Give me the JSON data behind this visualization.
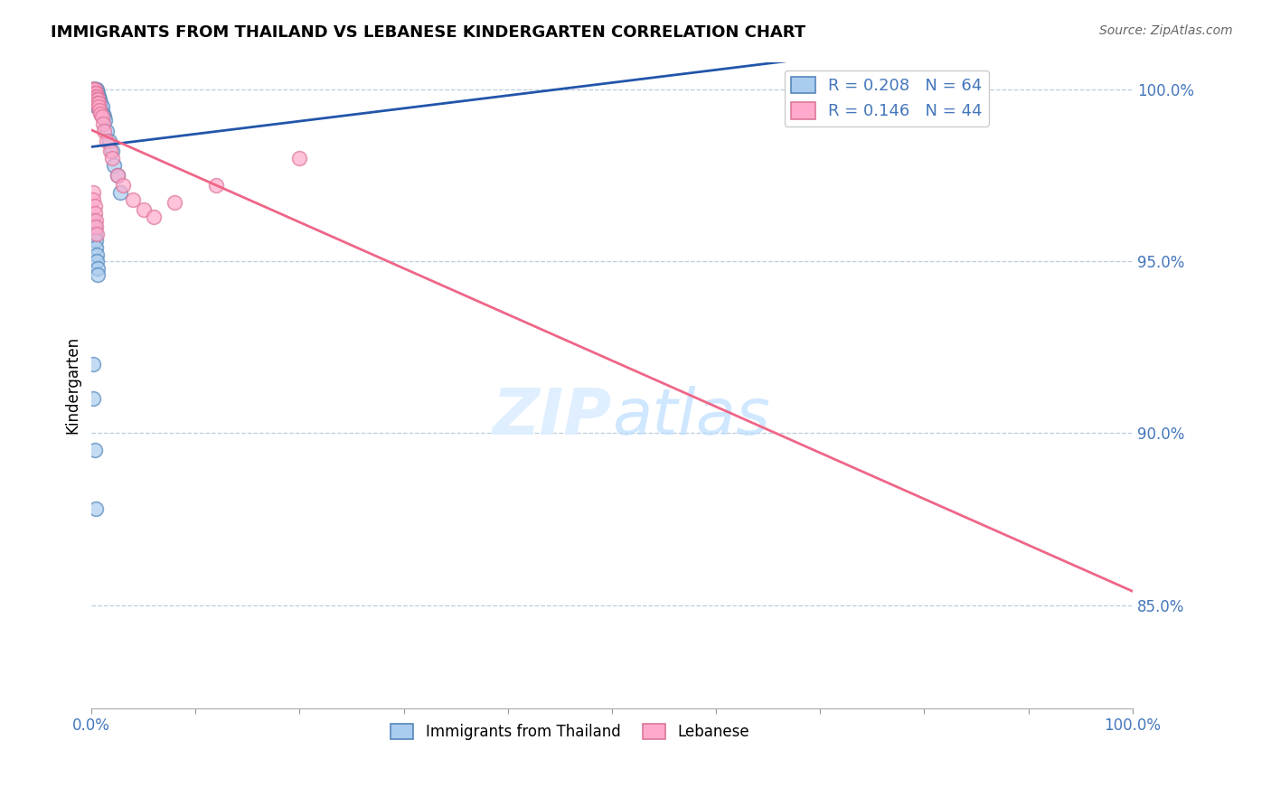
{
  "title": "IMMIGRANTS FROM THAILAND VS LEBANESE KINDERGARTEN CORRELATION CHART",
  "source": "Source: ZipAtlas.com",
  "ylabel": "Kindergarten",
  "legend_label1": "Immigrants from Thailand",
  "legend_label2": "Lebanese",
  "R1": 0.208,
  "N1": 64,
  "R2": 0.146,
  "N2": 44,
  "blue_fill": "#AACCEE",
  "blue_edge": "#5588BB",
  "pink_fill": "#FFAACC",
  "pink_edge": "#DD7799",
  "blue_line_color": "#2255AA",
  "pink_line_color": "#EE6688",
  "grid_color": "#BBCCDD",
  "right_tick_color": "#4477BB",
  "background_color": "#FFFFFF",
  "watermark_color": "#DDEEFF",
  "blue_x": [
    0.001,
    0.001,
    0.001,
    0.002,
    0.002,
    0.002,
    0.002,
    0.002,
    0.002,
    0.002,
    0.003,
    0.003,
    0.003,
    0.003,
    0.003,
    0.003,
    0.003,
    0.004,
    0.004,
    0.004,
    0.004,
    0.004,
    0.004,
    0.005,
    0.005,
    0.005,
    0.005,
    0.005,
    0.005,
    0.006,
    0.006,
    0.006,
    0.006,
    0.007,
    0.007,
    0.007,
    0.008,
    0.008,
    0.009,
    0.009,
    0.01,
    0.01,
    0.011,
    0.012,
    0.013,
    0.015,
    0.017,
    0.02,
    0.022,
    0.025,
    0.028,
    0.002,
    0.003,
    0.003,
    0.004,
    0.004,
    0.005,
    0.005,
    0.006,
    0.006,
    0.002,
    0.002,
    0.003,
    0.004
  ],
  "blue_y": [
    1.0,
    1.0,
    0.999,
    1.0,
    1.0,
    1.0,
    0.999,
    0.998,
    0.997,
    0.996,
    1.0,
    1.0,
    1.0,
    0.999,
    0.998,
    0.997,
    0.996,
    1.0,
    1.0,
    0.999,
    0.998,
    0.997,
    0.996,
    1.0,
    0.999,
    0.998,
    0.997,
    0.996,
    0.995,
    0.999,
    0.998,
    0.997,
    0.995,
    0.998,
    0.997,
    0.995,
    0.997,
    0.995,
    0.996,
    0.994,
    0.995,
    0.993,
    0.993,
    0.992,
    0.991,
    0.988,
    0.985,
    0.982,
    0.978,
    0.975,
    0.97,
    0.962,
    0.96,
    0.958,
    0.956,
    0.954,
    0.952,
    0.95,
    0.948,
    0.946,
    0.92,
    0.91,
    0.895,
    0.878
  ],
  "pink_x": [
    0.001,
    0.001,
    0.001,
    0.002,
    0.002,
    0.002,
    0.002,
    0.003,
    0.003,
    0.003,
    0.003,
    0.004,
    0.004,
    0.004,
    0.005,
    0.005,
    0.005,
    0.006,
    0.006,
    0.007,
    0.007,
    0.008,
    0.009,
    0.01,
    0.011,
    0.012,
    0.015,
    0.018,
    0.02,
    0.025,
    0.03,
    0.04,
    0.05,
    0.002,
    0.002,
    0.003,
    0.003,
    0.004,
    0.004,
    0.005,
    0.06,
    0.08,
    0.12,
    0.2
  ],
  "pink_y": [
    1.0,
    1.0,
    0.999,
    1.0,
    1.0,
    0.999,
    0.998,
    1.0,
    0.999,
    0.998,
    0.997,
    0.999,
    0.998,
    0.997,
    0.998,
    0.997,
    0.996,
    0.997,
    0.996,
    0.996,
    0.995,
    0.994,
    0.993,
    0.992,
    0.99,
    0.988,
    0.985,
    0.982,
    0.98,
    0.975,
    0.972,
    0.968,
    0.965,
    0.97,
    0.968,
    0.966,
    0.964,
    0.962,
    0.96,
    0.958,
    0.963,
    0.967,
    0.972,
    0.98
  ],
  "xmin": 0.0,
  "xmax": 1.0,
  "ymin": 0.82,
  "ymax": 1.008,
  "yticks": [
    0.85,
    0.9,
    0.95,
    1.0
  ],
  "ytick_labels": [
    "85.0%",
    "90.0%",
    "95.0%",
    "100.0%"
  ]
}
